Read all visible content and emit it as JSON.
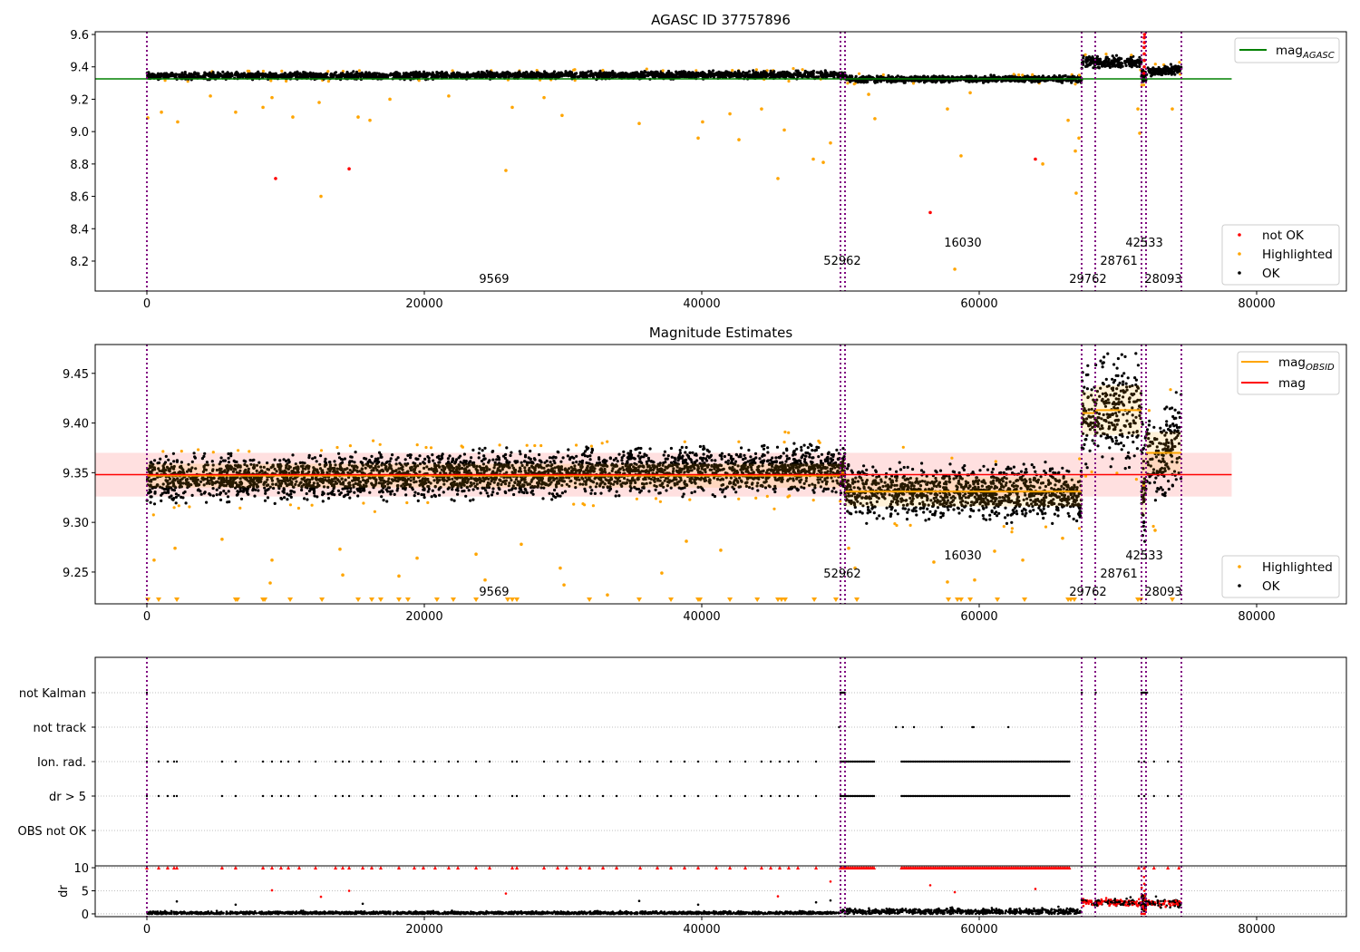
{
  "obs_boundaries": [
    0,
    50000,
    50327,
    67386,
    68366,
    71699,
    72026,
    74575
  ],
  "obsid_labels": [
    {
      "text": "9569",
      "x": 25030,
      "level": 0
    },
    {
      "text": "52962",
      "x": 50130,
      "level": 1
    },
    {
      "text": "16030",
      "x": 58820,
      "level": 2
    },
    {
      "text": "29762",
      "x": 67840,
      "level": 0
    },
    {
      "text": "28761",
      "x": 70070,
      "level": 1
    },
    {
      "text": "42533",
      "x": 71900,
      "level": 2
    },
    {
      "text": "28093",
      "x": 73270,
      "level": 0
    }
  ],
  "colors": {
    "ok": "#000000",
    "highlighted": "#ffa500",
    "not_ok": "#ff0000",
    "agasc": "#008000",
    "mag": "#ff0000",
    "obs_line": "#ffa500",
    "boundary": "#800080"
  },
  "chart_data": [
    {
      "type": "scatter",
      "title": "AGASC ID 37757896",
      "xlim": [
        -3725,
        86470
      ],
      "ylim": [
        8.015,
        9.617
      ],
      "xticks": [
        0,
        20000,
        40000,
        60000,
        80000
      ],
      "xtick_labels": [
        "0",
        "20000",
        "40000",
        "60000",
        "80000"
      ],
      "yticks": [
        8.2,
        8.4,
        8.6,
        8.8,
        9.0,
        9.2,
        9.4,
        9.6
      ],
      "ytick_labels": [
        "8.2",
        "8.4",
        "8.6",
        "8.8",
        "9.0",
        "9.2",
        "9.4",
        "9.6"
      ],
      "mag_agasc": 9.326,
      "line_extent": [
        -3725,
        78200
      ],
      "legend_line": {
        "label": "mag",
        "sub": "AGASC"
      },
      "legend_points": [
        "not OK",
        "Highlighted",
        "OK"
      ],
      "segments": [
        {
          "x": [
            0,
            50000
          ],
          "mean": [
            9.343,
            9.352
          ],
          "std": 0.011
        },
        {
          "x": [
            50000,
            50327
          ],
          "mean": [
            9.345,
            9.345
          ],
          "std": 0.012
        },
        {
          "x": [
            50327,
            67386
          ],
          "mean": [
            9.325,
            9.325
          ],
          "std": 0.01
        },
        {
          "x": [
            67386,
            68366
          ],
          "mean": [
            9.43,
            9.43
          ],
          "std": 0.017
        },
        {
          "x": [
            68366,
            71699
          ],
          "mean": [
            9.43,
            9.425
          ],
          "std": 0.018
        },
        {
          "x": [
            71699,
            72026
          ],
          "mean": [
            9.345,
            9.345
          ],
          "std": 0.02
        },
        {
          "x": [
            72026,
            74575
          ],
          "mean": [
            9.365,
            9.39
          ],
          "std": 0.014
        }
      ],
      "highlighted": [
        [
          70,
          9.085
        ],
        [
          1050,
          9.12
        ],
        [
          2220,
          9.06
        ],
        [
          4580,
          9.22
        ],
        [
          6400,
          9.12
        ],
        [
          8370,
          9.15
        ],
        [
          9020,
          9.21
        ],
        [
          10520,
          9.09
        ],
        [
          12420,
          9.18
        ],
        [
          12550,
          8.6
        ],
        [
          15230,
          9.09
        ],
        [
          16080,
          9.07
        ],
        [
          17520,
          9.2
        ],
        [
          21760,
          9.22
        ],
        [
          25880,
          8.76
        ],
        [
          26340,
          9.15
        ],
        [
          28630,
          9.21
        ],
        [
          29930,
          9.1
        ],
        [
          35490,
          9.05
        ],
        [
          39740,
          8.96
        ],
        [
          40060,
          9.06
        ],
        [
          42030,
          9.11
        ],
        [
          42680,
          8.95
        ],
        [
          44310,
          9.14
        ],
        [
          45490,
          8.71
        ],
        [
          45950,
          9.01
        ],
        [
          48040,
          8.83
        ],
        [
          48760,
          8.81
        ],
        [
          49280,
          8.93
        ],
        [
          52030,
          9.23
        ],
        [
          52480,
          9.08
        ],
        [
          57710,
          9.14
        ],
        [
          58690,
          8.85
        ],
        [
          58240,
          8.15
        ],
        [
          59350,
          9.24
        ],
        [
          64580,
          8.8
        ],
        [
          66410,
          9.07
        ],
        [
          66930,
          8.88
        ],
        [
          66990,
          8.62
        ],
        [
          67190,
          8.96
        ],
        [
          71440,
          9.14
        ],
        [
          71570,
          8.99
        ],
        [
          73920,
          9.14
        ]
      ],
      "not_ok": [
        [
          9280,
          8.71
        ],
        [
          14580,
          8.77
        ],
        [
          56470,
          8.5
        ],
        [
          64050,
          8.83
        ],
        [
          71880,
          9.36
        ],
        [
          71900,
          9.4
        ],
        [
          71910,
          9.44
        ],
        [
          71900,
          9.48
        ],
        [
          71890,
          9.52
        ],
        [
          71910,
          9.55
        ],
        [
          71900,
          9.58
        ],
        [
          71920,
          9.6
        ]
      ]
    },
    {
      "type": "scatter",
      "title": "Magnitude Estimates",
      "xlim": [
        -3725,
        86470
      ],
      "ylim": [
        9.218,
        9.479
      ],
      "xticks": [
        0,
        20000,
        40000,
        60000,
        80000
      ],
      "xtick_labels": [
        "0",
        "20000",
        "40000",
        "60000",
        "80000"
      ],
      "yticks": [
        9.25,
        9.3,
        9.35,
        9.4,
        9.45
      ],
      "ytick_labels": [
        "9.25",
        "9.30",
        "9.35",
        "9.40",
        "9.45"
      ],
      "mag": 9.348,
      "mag_band": [
        9.326,
        9.37
      ],
      "line_extent": [
        -3725,
        78200
      ],
      "legend_lines": [
        {
          "label": "mag",
          "sub": "OBSID"
        },
        {
          "label": "mag",
          "sub": ""
        }
      ],
      "legend_points": [
        "Highlighted",
        "OK"
      ],
      "segments": [
        {
          "x": [
            0,
            50000
          ],
          "mean": [
            9.343,
            9.354
          ],
          "std": 0.011,
          "obs_mag": 9.347,
          "obs_std": 0.012
        },
        {
          "x": [
            50000,
            50327
          ],
          "mean": [
            9.35,
            9.35
          ],
          "std": 0.012,
          "obs_mag": 9.35,
          "obs_std": 0.012
        },
        {
          "x": [
            50327,
            67386
          ],
          "mean": [
            9.33,
            9.33
          ],
          "std": 0.013,
          "obs_mag": 9.331,
          "obs_std": 0.015
        },
        {
          "x": [
            67386,
            68366
          ],
          "mean": [
            9.41,
            9.41
          ],
          "std": 0.024,
          "obs_mag": 9.41,
          "obs_std": 0.022
        },
        {
          "x": [
            68366,
            71699
          ],
          "mean": [
            9.415,
            9.41
          ],
          "std": 0.026,
          "obs_mag": 9.413,
          "obs_std": 0.025
        },
        {
          "x": [
            71699,
            72026
          ],
          "mean": [
            9.337,
            9.337
          ],
          "std": 0.03,
          "obs_mag": 9.337,
          "obs_std": 0.03
        },
        {
          "x": [
            72026,
            74575
          ],
          "mean": [
            9.355,
            9.39
          ],
          "std": 0.022,
          "obs_mag": 9.37,
          "obs_std": 0.021
        }
      ],
      "highlighted": [
        [
          520,
          9.262
        ],
        [
          2030,
          9.274
        ],
        [
          5420,
          9.283
        ],
        [
          9020,
          9.262
        ],
        [
          8890,
          9.239
        ],
        [
          13920,
          9.273
        ],
        [
          14120,
          9.247
        ],
        [
          18170,
          9.246
        ],
        [
          19480,
          9.264
        ],
        [
          23730,
          9.268
        ],
        [
          24380,
          9.242
        ],
        [
          26990,
          9.278
        ],
        [
          29800,
          9.254
        ],
        [
          30070,
          9.237
        ],
        [
          33200,
          9.227
        ],
        [
          37120,
          9.249
        ],
        [
          38890,
          9.281
        ],
        [
          41370,
          9.272
        ],
        [
          50590,
          9.274
        ],
        [
          51050,
          9.254
        ],
        [
          56730,
          9.26
        ],
        [
          57710,
          9.24
        ],
        [
          59670,
          9.242
        ],
        [
          61110,
          9.271
        ],
        [
          63140,
          9.262
        ],
        [
          66010,
          9.284
        ],
        [
          72680,
          9.292
        ]
      ],
      "below_range_x": [
        70,
        850,
        2160,
        6400,
        6530,
        8370,
        8500,
        10330,
        12620,
        15230,
        16210,
        16860,
        18170,
        18820,
        20910,
        22090,
        23730,
        26010,
        26340,
        26670,
        31900,
        35490,
        37780,
        39740,
        39870,
        42030,
        44000,
        45490,
        45750,
        46010,
        48110,
        49670,
        51180,
        57780,
        58430,
        58690,
        59350,
        61310,
        63270,
        66410,
        66600,
        66860,
        71440,
        71640,
        73920
      ]
    },
    {
      "type": "scatter",
      "categories": [
        "not Kalman",
        "not track",
        "Ion. rad.",
        "dr > 5",
        "OBS not OK"
      ],
      "flags": [
        {
          "xs": [
            0,
            50000,
            50100,
            50200,
            50300,
            67400,
            68400,
            71700,
            71800,
            71900,
            72000,
            72100
          ],
          "ranges": []
        },
        {
          "xs": [
            0,
            49900,
            54000,
            54500,
            55300,
            57300,
            59500,
            59600,
            62100
          ],
          "ranges": []
        },
        {
          "xs": [
            0,
            850,
            1500,
            1960,
            2160,
            5420,
            6400,
            8370,
            9020,
            9670,
            10200,
            10980,
            12160,
            13600,
            14120,
            14580,
            15560,
            16210,
            16860,
            18170,
            19280,
            19930,
            20780,
            21760,
            22420,
            23730,
            24710,
            26340,
            26670,
            28630,
            29610,
            30260,
            31240,
            31900,
            32880,
            33860,
            35560,
            36800,
            37780,
            38760,
            39740,
            41050,
            42030,
            43140,
            44310,
            44970,
            45620,
            46270,
            46930,
            48240,
            71500,
            71900,
            72600,
            73600,
            74400
          ],
          "ranges": [
            [
              50000,
              52500,
              110
            ],
            [
              54400,
              66500,
              110
            ]
          ]
        },
        {
          "xs": [
            0,
            850,
            1500,
            1960,
            2160,
            5420,
            6400,
            8370,
            9020,
            9670,
            10200,
            10980,
            12160,
            13600,
            14120,
            14580,
            15560,
            16210,
            16860,
            18170,
            19280,
            19930,
            20780,
            21760,
            22420,
            23730,
            24710,
            26340,
            26670,
            28630,
            29610,
            30260,
            31240,
            31900,
            32880,
            33860,
            35560,
            36800,
            37780,
            38760,
            39740,
            41050,
            42030,
            43140,
            44310,
            44970,
            45620,
            46270,
            46930,
            48240,
            71500,
            71900,
            72600,
            73600,
            74400
          ],
          "ranges": [
            [
              50000,
              52500,
              110
            ],
            [
              54400,
              66500,
              110
            ]
          ]
        },
        {
          "xs": [],
          "ranges": []
        }
      ]
    },
    {
      "type": "scatter",
      "ylabel": "dr",
      "ylim": [
        -0.6,
        10.4
      ],
      "yticks": [
        0,
        5,
        10
      ],
      "ytick_labels": [
        "0",
        "5",
        "10"
      ],
      "xticks": [
        0,
        20000,
        40000,
        60000,
        80000
      ],
      "xtick_labels": [
        "0",
        "20000",
        "40000",
        "60000",
        "80000"
      ],
      "segments": [
        {
          "x": [
            0,
            50000
          ],
          "mean": 0.2,
          "std": 0.15
        },
        {
          "x": [
            50000,
            67386
          ],
          "mean": 0.5,
          "std": 0.3
        },
        {
          "x": [
            67386,
            71699
          ],
          "mean": 2.5,
          "std": 0.35
        },
        {
          "x": [
            71699,
            72026
          ],
          "mean": 2.5,
          "std": 1.5
        },
        {
          "x": [
            72026,
            74575
          ],
          "mean": 2.3,
          "std": 0.4
        }
      ],
      "clipped_value": 10,
      "red_mid": [
        [
          9020,
          5.1
        ],
        [
          12550,
          3.7
        ],
        [
          14580,
          5.0
        ],
        [
          25880,
          4.4
        ],
        [
          45490,
          3.8
        ],
        [
          49280,
          7.0
        ],
        [
          56470,
          6.2
        ],
        [
          58240,
          4.7
        ],
        [
          64050,
          5.4
        ],
        [
          71880,
          8.0
        ],
        [
          71900,
          6.5
        ],
        [
          71910,
          5.0
        ]
      ],
      "black_mid": [
        [
          2160,
          2.7
        ],
        [
          6400,
          2.0
        ],
        [
          15560,
          2.2
        ],
        [
          35490,
          2.8
        ],
        [
          39740,
          2.0
        ],
        [
          48240,
          2.5
        ],
        [
          49280,
          2.9
        ]
      ]
    }
  ]
}
